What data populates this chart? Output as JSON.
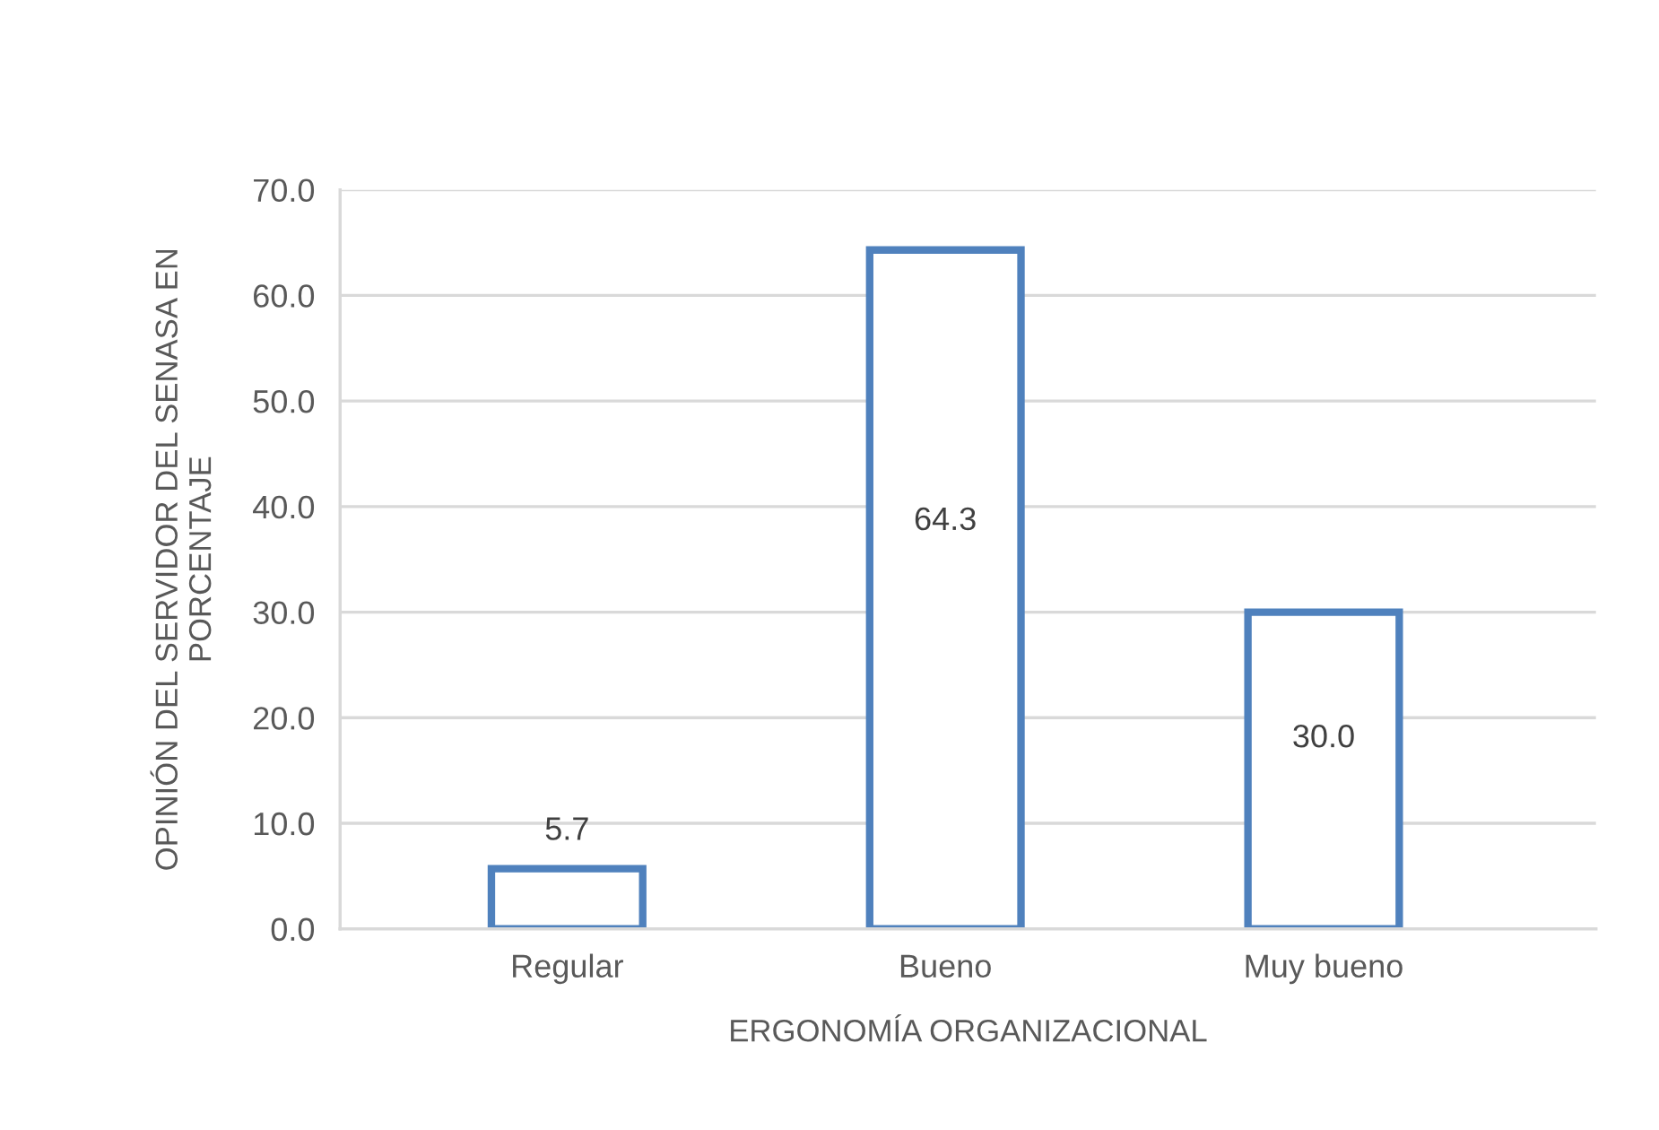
{
  "chart_data": {
    "type": "bar",
    "xlabel": "ERGONOMÍA ORGANIZACIONAL",
    "ylabel": "OPINIÓN DEL SERVIDOR DEL SENASA EN\nPORCENTAJE",
    "categories": [
      "Regular",
      "Bueno",
      "Muy bueno"
    ],
    "series": [
      {
        "color": "#4f81bd",
        "values": [
          5.7,
          64.3,
          30.0
        ],
        "value_labels": [
          "5.7",
          "64.3",
          "30.0"
        ]
      }
    ],
    "ylim": [
      0,
      70
    ],
    "yticks": [
      {
        "value": 0,
        "label": "0.0"
      },
      {
        "value": 10,
        "label": "10.0"
      },
      {
        "value": 20,
        "label": "20.0"
      },
      {
        "value": 30,
        "label": "30.0"
      },
      {
        "value": 40,
        "label": "40.0"
      },
      {
        "value": 50,
        "label": "50.0"
      },
      {
        "value": 60,
        "label": "60.0"
      },
      {
        "value": 70,
        "label": "70.0"
      }
    ],
    "grid": "y"
  }
}
